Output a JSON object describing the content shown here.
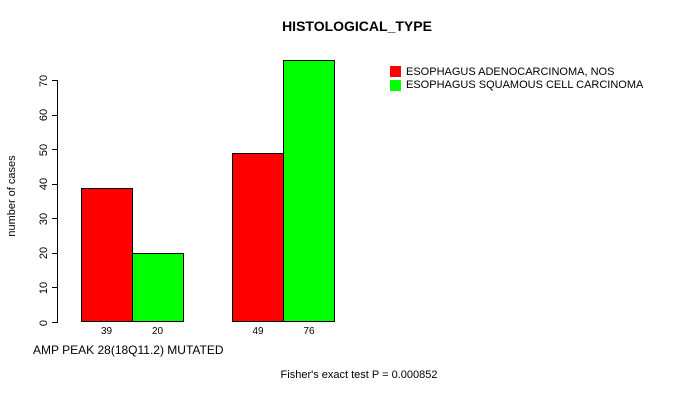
{
  "chart_data": {
    "type": "bar",
    "title": "HISTOLOGICAL_TYPE",
    "ylabel": "number of cases",
    "xlabel": "AMP PEAK 28(18Q11.2) MUTATED",
    "footnote": "Fisher's exact test P = 0.000852",
    "yticks": [
      0,
      10,
      20,
      30,
      40,
      50,
      60,
      70
    ],
    "ylim": [
      0,
      76
    ],
    "grid": false,
    "legend_position": "top-right",
    "categories": [
      "",
      ""
    ],
    "series": [
      {
        "name": "ESOPHAGUS ADENOCARCINOMA, NOS",
        "color": "#ff0000",
        "values": [
          39,
          49
        ]
      },
      {
        "name": "ESOPHAGUS SQUAMOUS CELL CARCINOMA",
        "color": "#00ff00",
        "values": [
          20,
          76
        ]
      }
    ],
    "bar_value_labels": [
      [
        39,
        20
      ],
      [
        49,
        76
      ]
    ]
  },
  "colors": {
    "background": "#ffffff",
    "text": "#000000",
    "bar_border": "#000000",
    "red_series": "#ff0000",
    "green_series": "#00ff00"
  }
}
